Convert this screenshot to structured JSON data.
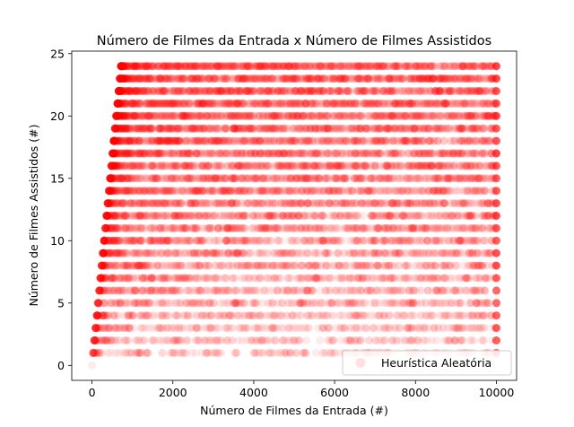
{
  "chart_data": {
    "type": "scatter",
    "title": "Número de Filmes da Entrada x Número de Filmes Assistidos",
    "xlabel": "Número de Filmes da Entrada (#)",
    "ylabel": "Número de Filmes Assistidos (#)",
    "xlim": [
      -500,
      10500
    ],
    "ylim": [
      -1.2,
      25.2
    ],
    "xticks": [
      0,
      2000,
      4000,
      6000,
      8000,
      10000
    ],
    "yticks": [
      0,
      5,
      10,
      15,
      20,
      25
    ],
    "grid": false,
    "legend_position": "bottom-right",
    "series": [
      {
        "name": "Heurística Aleatória",
        "color": "#ff0000",
        "alpha": 0.08,
        "marker": "circle",
        "rows": [
          {
            "y": 0,
            "x_min": 0,
            "x_max": 0
          },
          {
            "y": 1,
            "x_min": 0,
            "x_max": 10000
          },
          {
            "y": 2,
            "x_min": 0,
            "x_max": 10000
          },
          {
            "y": 3,
            "x_min": 0,
            "x_max": 10000
          },
          {
            "y": 4,
            "x_min": 0,
            "x_max": 10000
          },
          {
            "y": 5,
            "x_min": 0,
            "x_max": 10000
          },
          {
            "y": 6,
            "x_min": 0,
            "x_max": 10000
          },
          {
            "y": 7,
            "x_min": 0,
            "x_max": 10000
          },
          {
            "y": 8,
            "x_min": 0,
            "x_max": 10000
          },
          {
            "y": 9,
            "x_min": 0,
            "x_max": 10000
          },
          {
            "y": 10,
            "x_min": 0,
            "x_max": 10000
          },
          {
            "y": 11,
            "x_min": 0,
            "x_max": 10000
          },
          {
            "y": 12,
            "x_min": 0,
            "x_max": 10000
          },
          {
            "y": 13,
            "x_min": 0,
            "x_max": 10000
          },
          {
            "y": 14,
            "x_min": 0,
            "x_max": 10000
          },
          {
            "y": 15,
            "x_min": 0,
            "x_max": 10000
          },
          {
            "y": 16,
            "x_min": 0,
            "x_max": 10000
          },
          {
            "y": 17,
            "x_min": 0,
            "x_max": 10000
          },
          {
            "y": 18,
            "x_min": 0,
            "x_max": 10000
          },
          {
            "y": 19,
            "x_min": 0,
            "x_max": 10000
          },
          {
            "y": 20,
            "x_min": 0,
            "x_max": 10000
          },
          {
            "y": 21,
            "x_min": 0,
            "x_max": 10000
          },
          {
            "y": 22,
            "x_min": 0,
            "x_max": 10000
          },
          {
            "y": 23,
            "x_min": 0,
            "x_max": 10000
          },
          {
            "y": 24,
            "x_min": 0,
            "x_max": 10000
          }
        ]
      }
    ]
  }
}
